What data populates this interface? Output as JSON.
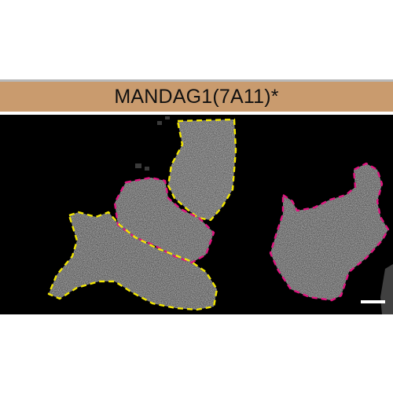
{
  "header": {
    "title": "MANDAG1(7A11)*",
    "band_color": "#c99b6e"
  },
  "micrograph": {
    "background_color": "#000000",
    "outline_colors": {
      "yellow": "#f2e600",
      "magenta": "#e0147f"
    },
    "cell_count": 5,
    "has_scale_bar": true
  }
}
